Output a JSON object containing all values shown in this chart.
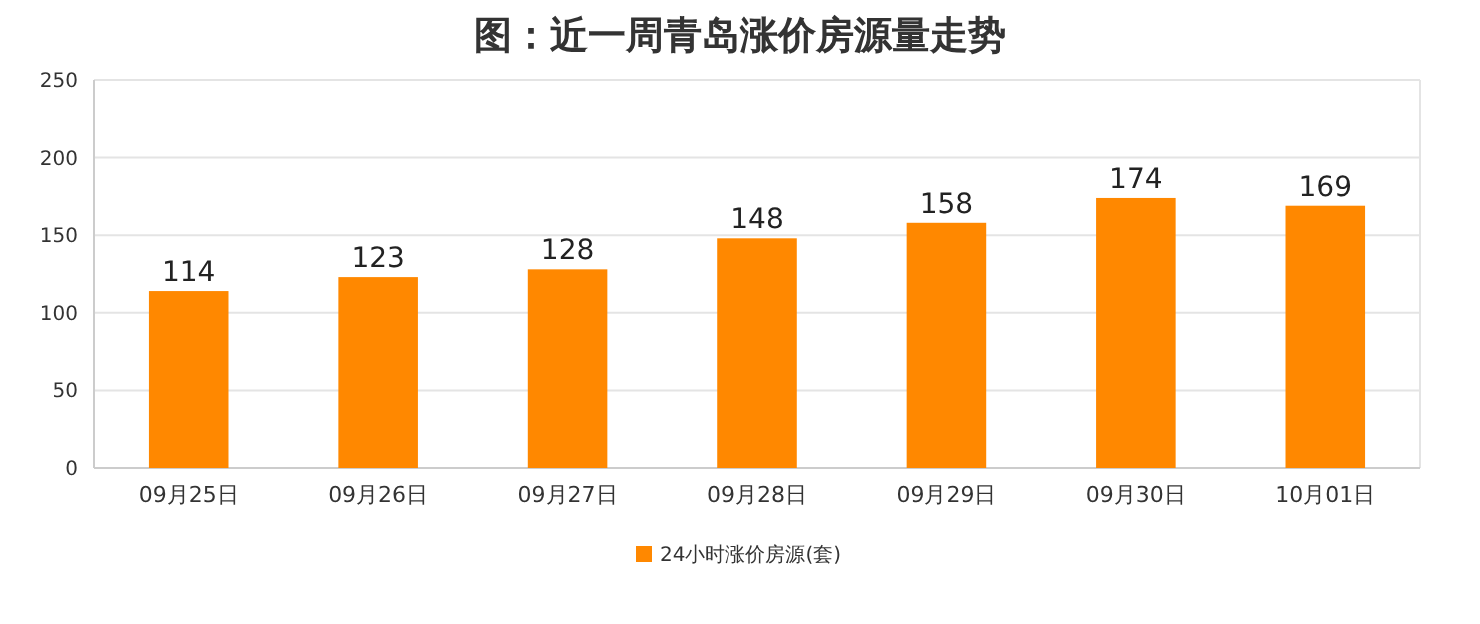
{
  "chart_data": {
    "type": "bar",
    "title": "图：近一周青岛涨价房源量走势",
    "categories": [
      "09月25日",
      "09月26日",
      "09月27日",
      "09月28日",
      "09月29日",
      "09月30日",
      "10月01日"
    ],
    "series": [
      {
        "name": "24小时涨价房源(套)",
        "color": "#ff8800",
        "values": [
          114,
          123,
          128,
          148,
          158,
          174,
          169
        ]
      }
    ],
    "ylim": [
      0,
      250
    ],
    "yticks": [
      0,
      50,
      100,
      150,
      200,
      250
    ],
    "grid": "y",
    "legend": "bottom",
    "data_labels": true
  }
}
